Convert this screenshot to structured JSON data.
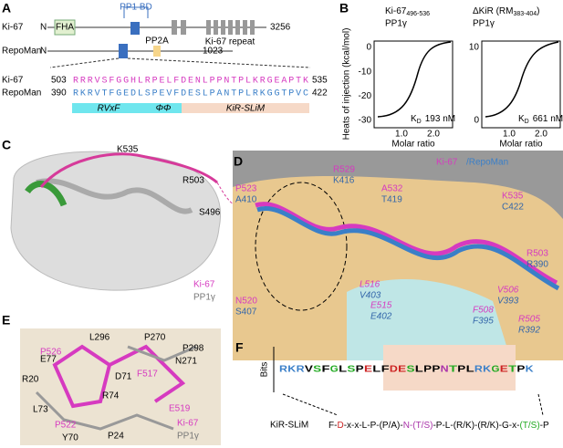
{
  "panel_labels": [
    "A",
    "B",
    "C",
    "D",
    "E",
    "F"
  ],
  "panel_a": {
    "rows": [
      {
        "name": "Ki-67",
        "n": "N",
        "end": 3256
      },
      {
        "name": "RepoMan",
        "n": "N",
        "end": 1023
      }
    ],
    "fha": "FHA",
    "pp1bd": "PP1 BD",
    "pp2a": "PP2A",
    "repeat": "Ki-67 repeat",
    "seq": [
      {
        "name": "Ki-67",
        "start": 503,
        "sequence": "RRRVSFGGHLRPELFDENLPPNTPLKRGEAPTK",
        "end": 535
      },
      {
        "name": "RepoMan",
        "start": 390,
        "sequence": "RKRVTFGEDLSPEVFDESLPANTPLRKGGTPVC",
        "end": 422
      }
    ],
    "motifs": [
      "RVxF",
      "ΦΦ",
      "KiR-SLiM"
    ]
  },
  "panel_b": {
    "ylabel": "Heats of injection (kcal/mol)",
    "xlabel": "Molar ratio",
    "plots": [
      {
        "title": "Ki-67",
        "subscript": "496-536",
        "subtitle": "PP1γ",
        "kd": "193 nM",
        "yticks": [
          "0",
          "-10",
          "-20",
          "-30"
        ],
        "xticks": [
          "1.0",
          "2.0"
        ]
      },
      {
        "title": "ΔKiR (RM",
        "subscript": "383-404",
        "title_end": ")",
        "subtitle": "PP1γ",
        "kd": "661 nM",
        "yticks": [
          "10",
          "0"
        ],
        "xticks": [
          "1.0",
          "2.0"
        ]
      }
    ],
    "kd_label": "K",
    "kd_sub": "D"
  },
  "panel_c": {
    "labels": [
      "K535",
      "R503",
      "S496"
    ],
    "legend": [
      "Ki-67",
      "PP1γ"
    ]
  },
  "panel_d": {
    "legend": [
      "Ki-67",
      "/RepoMan"
    ],
    "residues": [
      [
        "P523",
        "A410"
      ],
      [
        "R529",
        "K416"
      ],
      [
        "A532",
        "T419"
      ],
      [
        "K535",
        "C422"
      ],
      [
        "R503",
        "R390"
      ],
      [
        "N520",
        "S407"
      ],
      [
        "L516",
        "V403"
      ],
      [
        "E515",
        "E402"
      ],
      [
        "V506",
        "V393"
      ],
      [
        "F508",
        "F395"
      ],
      [
        "R505",
        "R392"
      ]
    ]
  },
  "panel_e": {
    "pp1": [
      "L296",
      "P270",
      "P298",
      "E77",
      "R20",
      "N271",
      "D71",
      "R74",
      "L73",
      "Y70",
      "P24"
    ],
    "ki67": [
      "P526",
      "F517",
      "P522",
      "E519"
    ],
    "legend": [
      "Ki-67",
      "PP1γ"
    ]
  },
  "panel_f": {
    "ylabel": "Bits",
    "logo": [
      "R",
      "K",
      "R",
      "V",
      "S",
      "F",
      "G",
      "L",
      "S",
      "P",
      "E",
      "L",
      "F",
      "D",
      "E",
      "S",
      "L",
      "P",
      "P",
      "N",
      "T",
      "P",
      "L",
      "R",
      "K",
      "G",
      "E",
      "T",
      "P",
      "K"
    ],
    "motif_name": "KiR-SLiM",
    "motif": [
      "F-",
      "D",
      "-x-x-L-P-(P/A)-",
      "N-(T/S)",
      "-P-L-(R/K)-(R/K)-G-x-",
      "(T/S)",
      "-P"
    ]
  }
}
